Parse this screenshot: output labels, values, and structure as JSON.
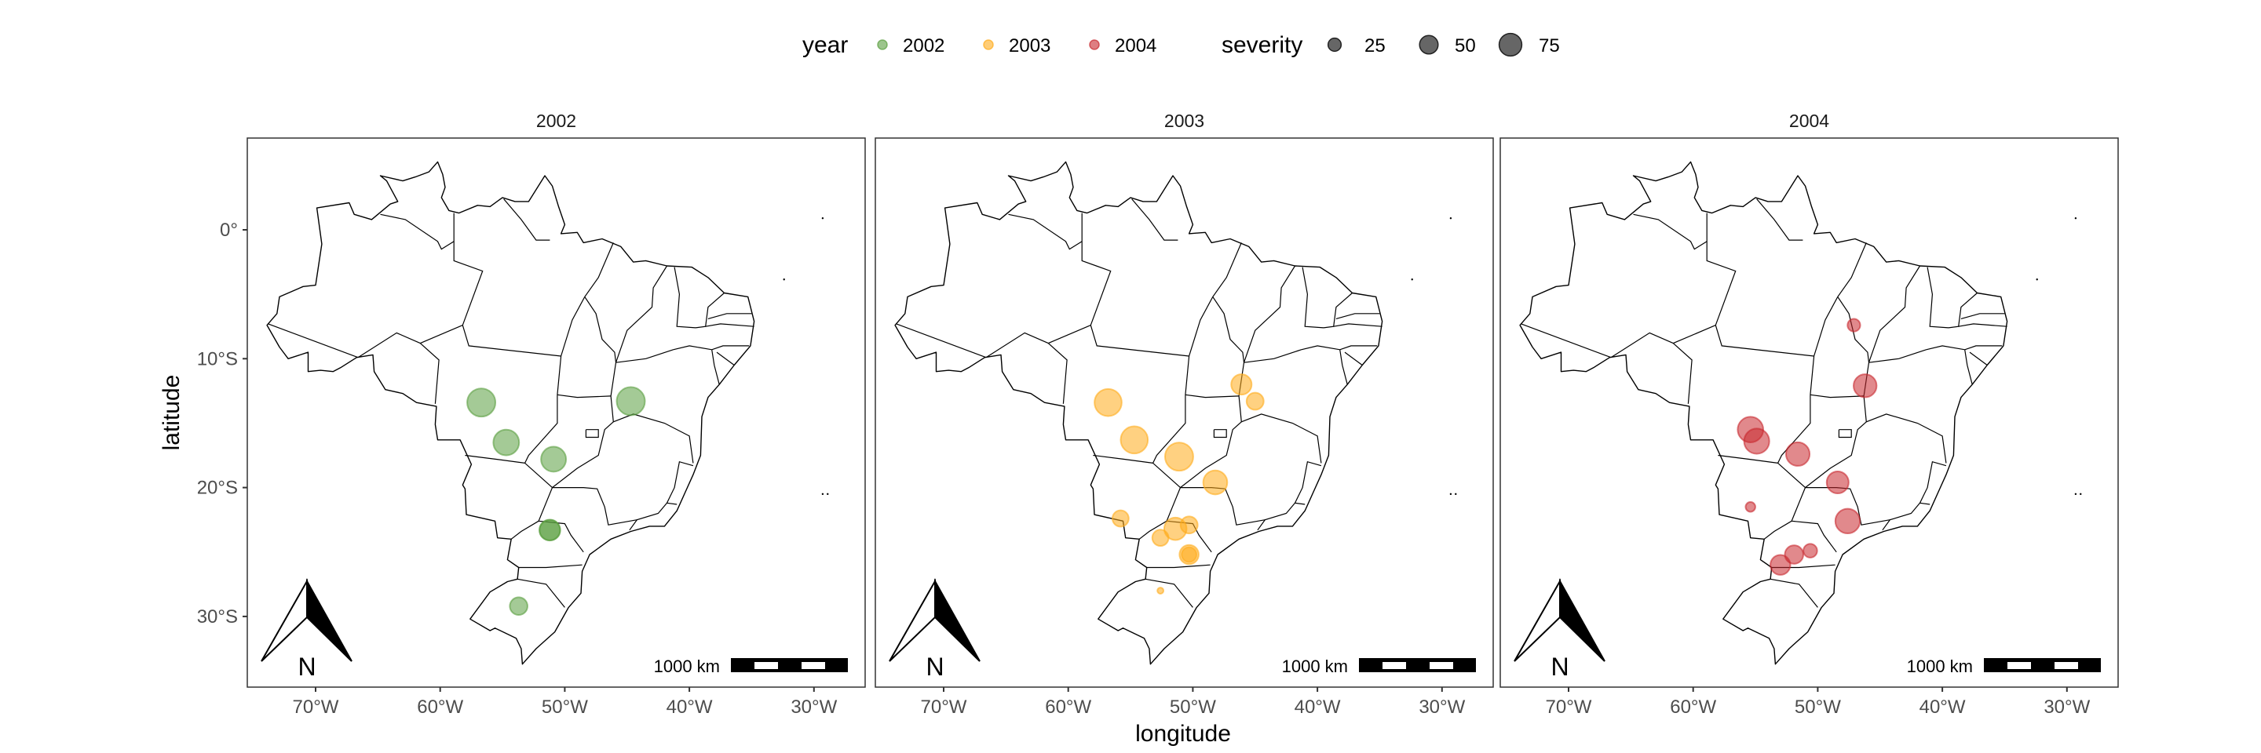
{
  "legend": {
    "year_title": "year",
    "year_items": [
      {
        "label": "2002",
        "color": "#5a9e3f"
      },
      {
        "label": "2003",
        "color": "#ffab1a"
      },
      {
        "label": "2004",
        "color": "#c8282e"
      }
    ],
    "severity_title": "severity",
    "severity_items": [
      {
        "label": "25",
        "value": 25
      },
      {
        "label": "50",
        "value": 50
      },
      {
        "label": "75",
        "value": 75
      }
    ]
  },
  "scalebar_label": "1000 km",
  "north_label": "N",
  "chart_data": {
    "type": "scatter",
    "subtype": "faceted map (bubble)",
    "xlabel": "longitude",
    "ylabel": "latitude",
    "xlim": [
      -75.5,
      -26.2
    ],
    "ylim": [
      -35.5,
      7.1
    ],
    "x_ticks": [
      -70,
      -60,
      -50,
      -40,
      -30
    ],
    "x_tick_labels": [
      "70°W",
      "60°W",
      "50°W",
      "40°W",
      "30°W"
    ],
    "y_ticks": [
      0,
      -10,
      -20,
      -30
    ],
    "y_tick_labels": [
      "0°",
      "10°S",
      "20°S",
      "30°S"
    ],
    "grid": false,
    "legend_position": "top",
    "facets": [
      {
        "title": "2002",
        "color": "#5a9e3f",
        "points": [
          {
            "lon": -56.7,
            "lat": -13.4,
            "severity": 84
          },
          {
            "lon": -44.7,
            "lat": -13.3,
            "severity": 84
          },
          {
            "lon": -54.7,
            "lat": -16.5,
            "severity": 70
          },
          {
            "lon": -50.9,
            "lat": -17.8,
            "severity": 66
          },
          {
            "lon": -51.2,
            "lat": -23.3,
            "severity": 46
          },
          {
            "lon": -51.2,
            "lat": -23.3,
            "severity": 44
          },
          {
            "lon": -53.7,
            "lat": -29.2,
            "severity": 33
          }
        ]
      },
      {
        "title": "2003",
        "color": "#ffab1a",
        "points": [
          {
            "lon": -56.8,
            "lat": -13.4,
            "severity": 78
          },
          {
            "lon": -54.7,
            "lat": -16.3,
            "severity": 78
          },
          {
            "lon": -51.1,
            "lat": -17.6,
            "severity": 84
          },
          {
            "lon": -48.2,
            "lat": -19.6,
            "severity": 61
          },
          {
            "lon": -46.1,
            "lat": -12.0,
            "severity": 44
          },
          {
            "lon": -45.0,
            "lat": -13.3,
            "severity": 31
          },
          {
            "lon": -55.8,
            "lat": -22.4,
            "severity": 28
          },
          {
            "lon": -51.4,
            "lat": -23.2,
            "severity": 53
          },
          {
            "lon": -50.3,
            "lat": -22.9,
            "severity": 31
          },
          {
            "lon": -52.6,
            "lat": -23.9,
            "severity": 28
          },
          {
            "lon": -50.3,
            "lat": -25.2,
            "severity": 39
          },
          {
            "lon": -50.3,
            "lat": -25.2,
            "severity": 23
          },
          {
            "lon": -52.6,
            "lat": -28.0,
            "severity": 4
          }
        ]
      },
      {
        "title": "2004",
        "color": "#c8282e",
        "points": [
          {
            "lon": -47.1,
            "lat": -7.4,
            "severity": 17
          },
          {
            "lon": -46.2,
            "lat": -12.1,
            "severity": 56
          },
          {
            "lon": -55.4,
            "lat": -15.5,
            "severity": 69
          },
          {
            "lon": -54.9,
            "lat": -16.4,
            "severity": 67
          },
          {
            "lon": -51.6,
            "lat": -17.4,
            "severity": 59
          },
          {
            "lon": -48.4,
            "lat": -19.6,
            "severity": 51
          },
          {
            "lon": -55.4,
            "lat": -21.5,
            "severity": 10
          },
          {
            "lon": -47.6,
            "lat": -22.6,
            "severity": 64
          },
          {
            "lon": -51.9,
            "lat": -25.2,
            "severity": 36
          },
          {
            "lon": -50.6,
            "lat": -24.9,
            "severity": 20
          },
          {
            "lon": -53.0,
            "lat": -26.0,
            "severity": 42
          }
        ]
      }
    ]
  }
}
